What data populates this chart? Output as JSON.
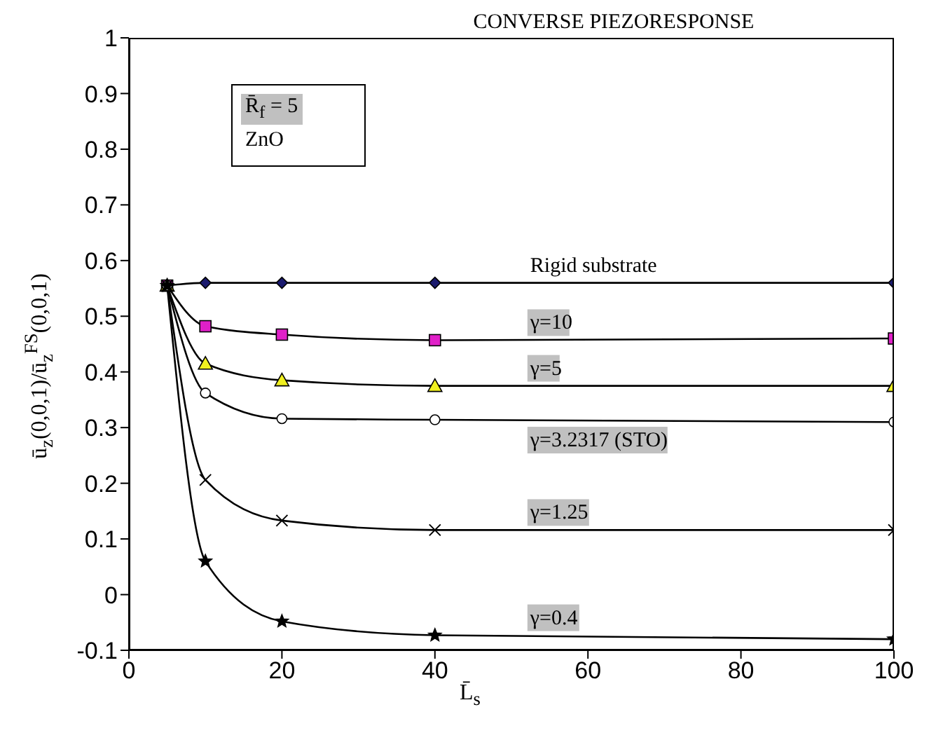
{
  "chart_data": {
    "type": "line",
    "title": "CONVERSE PIEZORESPONSE",
    "xlabel": "L̄$_{s}$",
    "ylabel": "ū$_{z}$(0,0,1)/ū$_{z}$$^{FS}$(0,0,1)",
    "annotations": [
      "R̄$_{f}$ = 5",
      "ZnO"
    ],
    "x": [
      5,
      10,
      20,
      40,
      100
    ],
    "series": [
      {
        "name": "Rigid substrate",
        "color": "#1a1a6e",
        "marker": "diamond",
        "values": [
          0.555,
          0.56,
          0.56,
          0.56,
          0.56
        ]
      },
      {
        "name": "γ=10",
        "color": "#e020c8",
        "marker": "square",
        "values": [
          0.555,
          0.482,
          0.467,
          0.457,
          0.46
        ]
      },
      {
        "name": "γ=5",
        "color": "#f0f020",
        "marker": "triangle",
        "values": [
          0.555,
          0.415,
          0.385,
          0.375,
          0.375
        ]
      },
      {
        "name": "γ=3.2317 (STO)",
        "color": "#ffffff",
        "marker": "circle",
        "values": [
          0.555,
          0.362,
          0.316,
          0.314,
          0.31
        ]
      },
      {
        "name": "γ=1.25",
        "color": "#000000",
        "marker": "cross",
        "values": [
          0.555,
          0.206,
          0.133,
          0.116,
          0.116
        ]
      },
      {
        "name": "γ=0.4",
        "color": "#000000",
        "marker": "star",
        "values": [
          0.555,
          0.06,
          -0.048,
          -0.073,
          -0.08
        ]
      }
    ],
    "xlim": [
      0,
      100
    ],
    "xticks": [
      0,
      20,
      40,
      60,
      80,
      100
    ],
    "ylim": [
      -0.1,
      1
    ],
    "yticks": [
      -0.1,
      0,
      0.1,
      0.2,
      0.3,
      0.4,
      0.5,
      0.6,
      0.7,
      0.8,
      0.9,
      1
    ],
    "grid": false,
    "legend": false,
    "line_style": "solid"
  }
}
